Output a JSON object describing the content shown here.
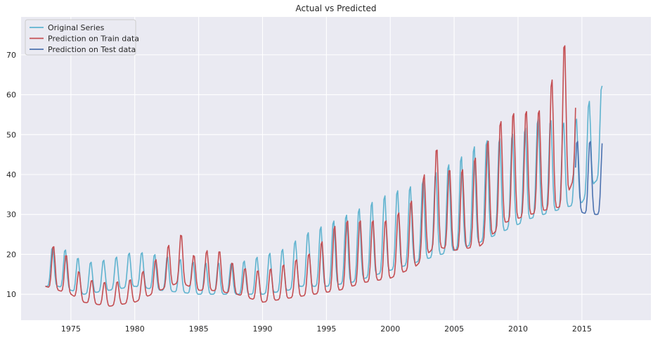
{
  "chart_data": {
    "type": "line",
    "title": "Actual vs Predicted",
    "xlabel": "",
    "ylabel": "",
    "xlim": [
      1971.1,
      2020.4
    ],
    "ylim": [
      3.5,
      79.5
    ],
    "grid": true,
    "legend_position": "top-left",
    "x_ticks": [
      1975,
      1980,
      1985,
      1990,
      1995,
      2000,
      2005,
      2010,
      2015
    ],
    "x_tick_labels": [
      "1975",
      "1980",
      "1985",
      "1990",
      "1995",
      "2000",
      "2005",
      "2010",
      "2015"
    ],
    "y_ticks": [
      10,
      20,
      30,
      40,
      50,
      60,
      70
    ],
    "y_tick_labels": [
      "10",
      "20",
      "30",
      "40",
      "50",
      "60",
      "70"
    ],
    "colors": {
      "background": "#eaeaf2",
      "grid": "#ffffff",
      "original": "#5fb3cf",
      "train": "#c44e52",
      "test": "#4c72b0"
    },
    "series": [
      {
        "name": "Original Series",
        "color": "#5fb3cf",
        "seasonal": {
          "start": 1973.0,
          "end": 2016.6,
          "peak_phase": 0.55,
          "sharpness": 3
        },
        "keyframes": [
          [
            1973.0,
            12,
            10
          ],
          [
            1974.0,
            12,
            10
          ],
          [
            1975.0,
            11,
            10
          ],
          [
            1976.0,
            10,
            8
          ],
          [
            1978.0,
            11,
            8
          ],
          [
            1980.0,
            12,
            9
          ],
          [
            1982.0,
            11,
            9
          ],
          [
            1985.0,
            10,
            8
          ],
          [
            1988.0,
            10,
            8
          ],
          [
            1990.0,
            10,
            10
          ],
          [
            1992.0,
            11,
            11
          ],
          [
            1993.0,
            12,
            13
          ],
          [
            1995.0,
            12,
            16
          ],
          [
            1997.0,
            13,
            18
          ],
          [
            2000.0,
            16,
            20
          ],
          [
            2002.0,
            18,
            20
          ],
          [
            2004.0,
            20,
            22
          ],
          [
            2006.0,
            22,
            24
          ],
          [
            2007.0,
            23,
            26
          ],
          [
            2009.0,
            26,
            24
          ],
          [
            2011.0,
            29,
            24
          ],
          [
            2012.0,
            30,
            26
          ],
          [
            2013.0,
            31,
            22
          ],
          [
            2015.0,
            33,
            22
          ],
          [
            2016.0,
            38,
            24
          ],
          [
            2016.6,
            40,
            23
          ]
        ]
      },
      {
        "name": "Prediction on Train data",
        "color": "#c44e52",
        "seasonal": {
          "start": 1973.0,
          "end": 2014.5,
          "peak_phase": 0.63,
          "sharpness": 3
        },
        "keyframes": [
          [
            1973.0,
            12,
            11
          ],
          [
            1974.0,
            11,
            11
          ],
          [
            1975.0,
            10,
            9
          ],
          [
            1976.0,
            8,
            6
          ],
          [
            1978.0,
            7,
            6
          ],
          [
            1980.0,
            8,
            6
          ],
          [
            1982.0,
            11,
            9
          ],
          [
            1983.5,
            13,
            13
          ],
          [
            1985.0,
            11,
            7
          ],
          [
            1986.0,
            11,
            12
          ],
          [
            1988.0,
            10,
            7
          ],
          [
            1990.0,
            8,
            8
          ],
          [
            1992.0,
            9,
            9
          ],
          [
            1994.0,
            10,
            11
          ],
          [
            1996.0,
            11,
            18
          ],
          [
            1998.0,
            13,
            16
          ],
          [
            2000.0,
            14,
            15
          ],
          [
            2002.0,
            17,
            18
          ],
          [
            2003.5,
            22,
            26
          ],
          [
            2005.0,
            21,
            19
          ],
          [
            2007.0,
            22,
            24
          ],
          [
            2009.0,
            28,
            28
          ],
          [
            2011.0,
            30,
            27
          ],
          [
            2012.0,
            31,
            26
          ],
          [
            2013.5,
            32,
            43
          ],
          [
            2014.5,
            40,
            28
          ]
        ]
      },
      {
        "name": "Prediction on Test data",
        "color": "#4c72b0",
        "seasonal": {
          "start": 2014.5,
          "end": 2016.6,
          "peak_phase": 0.63,
          "sharpness": 3
        },
        "keyframes": [
          [
            2014.5,
            31,
            18
          ],
          [
            2015.5,
            30,
            19
          ],
          [
            2016.6,
            30,
            19
          ]
        ]
      }
    ]
  }
}
